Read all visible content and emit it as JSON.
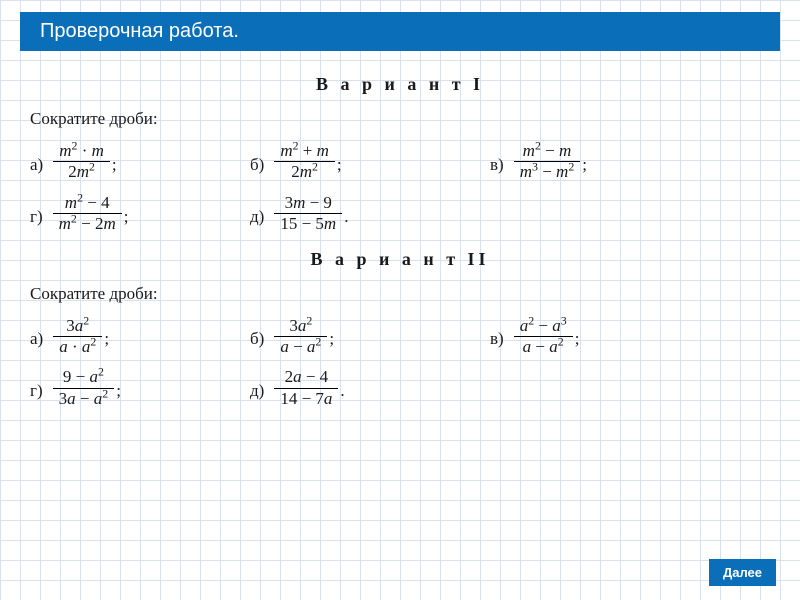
{
  "header": {
    "title": "Проверочная работа."
  },
  "variant1": {
    "title": "В а р и а н т  I",
    "instruction": "Сократите дроби:",
    "problems": {
      "a": {
        "label": "а)",
        "num": "m² · m",
        "den": "2m²",
        "after": ";"
      },
      "b": {
        "label": "б)",
        "num": "m² + m",
        "den": "2m²",
        "after": ";"
      },
      "v": {
        "label": "в)",
        "num": "m² − m",
        "den": "m³ − m²",
        "after": ";"
      },
      "g": {
        "label": "г)",
        "num": "m² − 4",
        "den": "m² − 2m",
        "after": ";"
      },
      "d": {
        "label": "д)",
        "num": "3m − 9",
        "den": "15 − 5m",
        "after": "."
      }
    }
  },
  "variant2": {
    "title": "В а р и а н т  II",
    "instruction": "Сократите дроби:",
    "problems": {
      "a": {
        "label": "а)",
        "num": "3a²",
        "den": "a · a²",
        "after": ";"
      },
      "b": {
        "label": "б)",
        "num": "3a²",
        "den": "a − a²",
        "after": ";"
      },
      "v": {
        "label": "в)",
        "num": "a² − a³",
        "den": "a − a²",
        "after": ";"
      },
      "g": {
        "label": "г)",
        "num": "9 − a²",
        "den": "3a − a²",
        "after": ";"
      },
      "d": {
        "label": "д)",
        "num": "2a − 4",
        "den": "14 − 7a",
        "after": "."
      }
    }
  },
  "next_button": "Далее",
  "colors": {
    "brand": "#0a6fb8",
    "grid": "#d9e2ec",
    "text": "#1a1a1a"
  }
}
